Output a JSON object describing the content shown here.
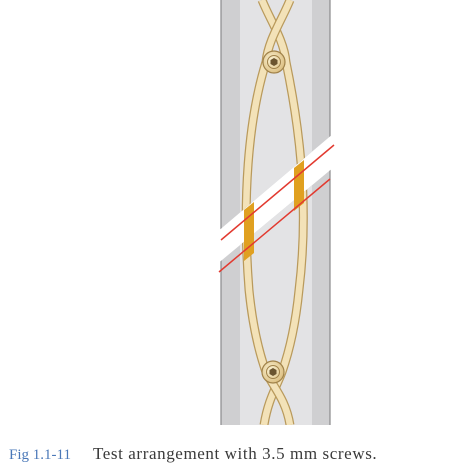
{
  "caption": {
    "figure_number": "Fig 1.1-11",
    "text": "Test arrangement with 3.5 mm screws."
  },
  "colors": {
    "bone_outer": "#cfcfd1",
    "bone_inner": "#e3e3e5",
    "bone_outline": "#8a8a8c",
    "wire_fill": "#f3e2b8",
    "wire_outline": "#b99a5c",
    "osteotomy_line": "#e23a30",
    "gap_fill": "#e0a020",
    "caption_number": "#4a78b8",
    "caption_text": "#3a3a3a"
  }
}
